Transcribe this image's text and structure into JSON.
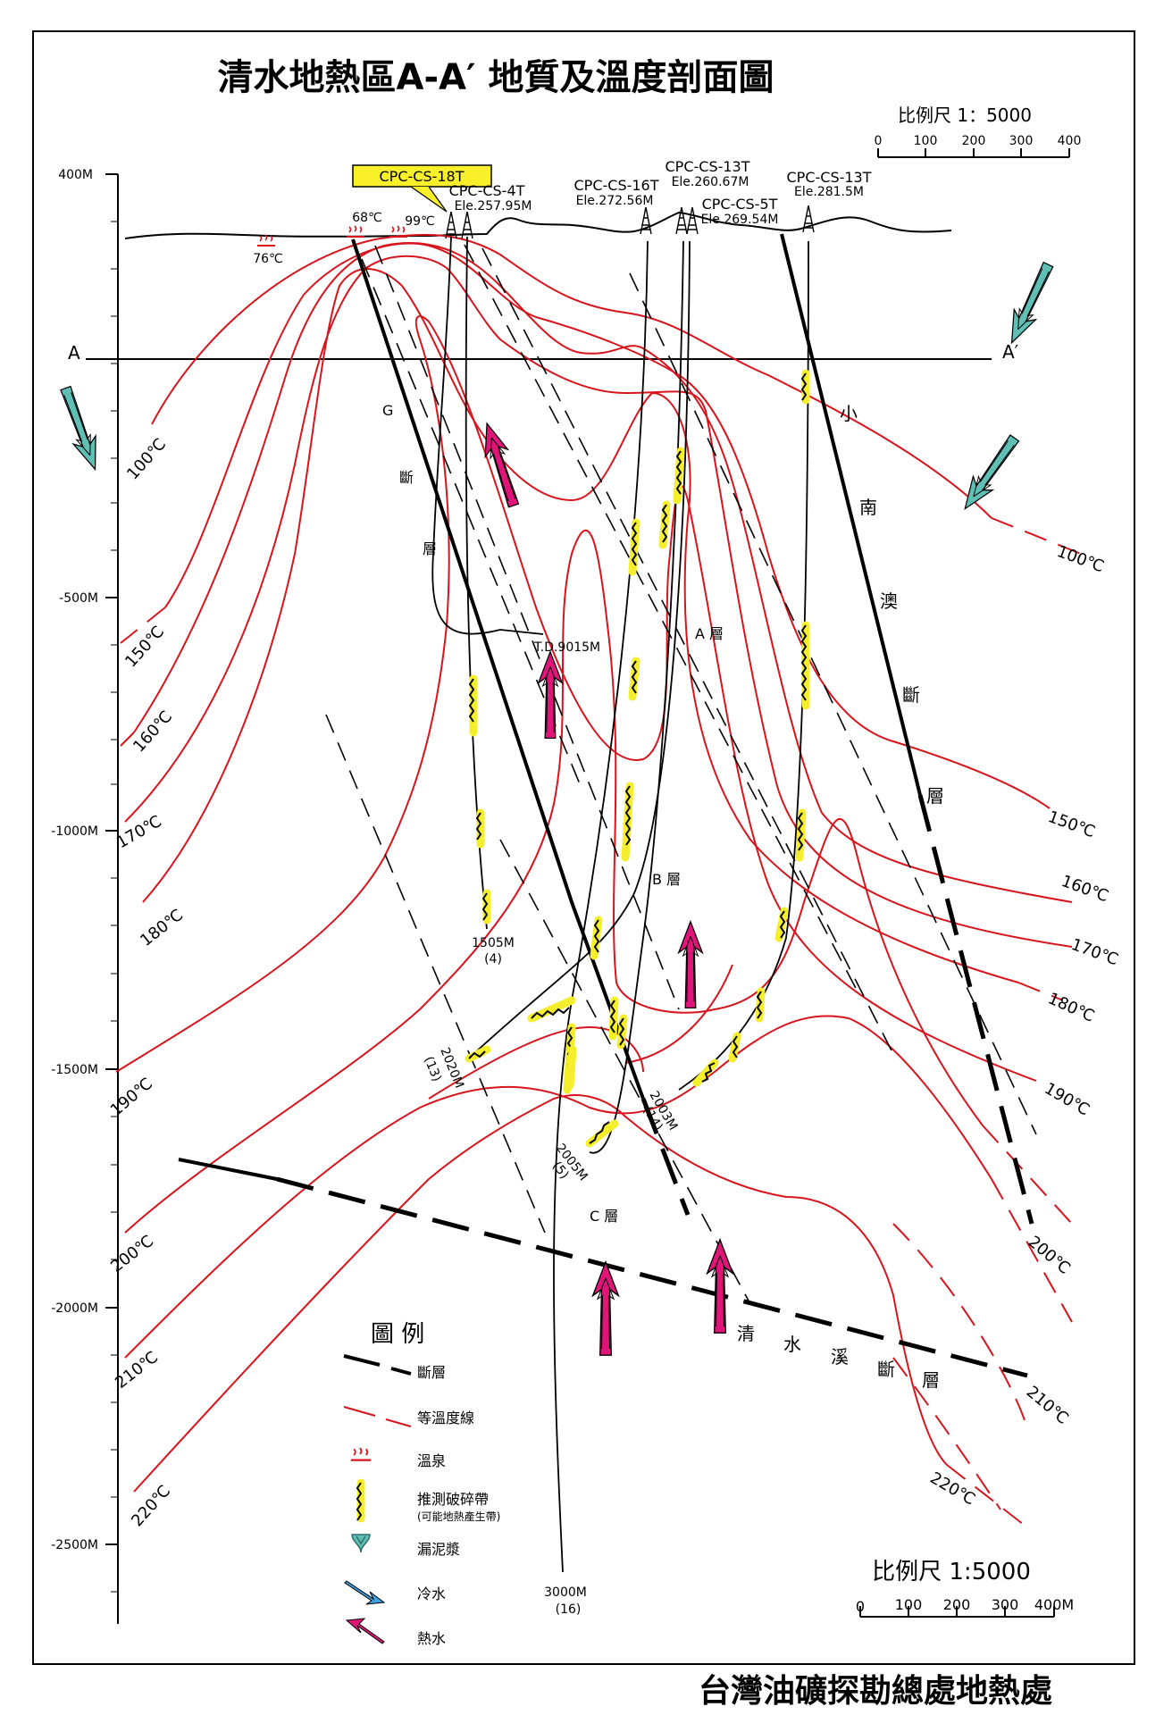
{
  "title": "清水地熱區A-A′ 地質及溫度剖面圖",
  "org_footer": "台灣油礦探勘總處地熱處",
  "scale_top": {
    "label": "比例尺 1：5000",
    "ticks": [
      "0",
      "100",
      "200",
      "300",
      "400"
    ]
  },
  "scale_bottom": {
    "label": "比例尺 1:5000",
    "ticks": [
      "0",
      "100",
      "200",
      "300",
      "400M"
    ]
  },
  "depth_axis": [
    "400M",
    "-500M",
    "-1000M",
    "-1500M",
    "-2000M",
    "-2500M"
  ],
  "section_ends": [
    "A",
    "A′"
  ],
  "wells": [
    {
      "name": "CPC-CS-18T",
      "elevation": ""
    },
    {
      "name": "CPC-CS-4T",
      "elevation": "Ele.257.95M"
    },
    {
      "name": "CPC-CS-16T",
      "elevation": "Ele.272.56M"
    },
    {
      "name": "CPC-CS-13T",
      "elevation": "Ele.260.67M"
    },
    {
      "name": "CPC-CS-5T",
      "elevation": "Ele.269.54M"
    },
    {
      "name": "CPC-CS-13T",
      "elevation": "Ele.281.5M"
    }
  ],
  "hot_springs": [
    "68℃",
    "99℃",
    "76℃"
  ],
  "well_depths": [
    {
      "depth": "T.D.9015M",
      "no": ""
    },
    {
      "depth": "1505M",
      "no": "(4)"
    },
    {
      "depth": "2020M",
      "no": "(13)"
    },
    {
      "depth": "2003M",
      "no": "(14)"
    },
    {
      "depth": "2005M",
      "no": "(5)"
    },
    {
      "depth": "3000M",
      "no": "(16)"
    }
  ],
  "isotherms_left": [
    "100℃",
    "150℃",
    "160℃",
    "170℃",
    "180℃",
    "190℃",
    "200℃",
    "210℃",
    "220℃"
  ],
  "isotherms_right": [
    "100℃",
    "150℃",
    "160℃",
    "170℃",
    "180℃",
    "190℃",
    "200℃",
    "210℃",
    "220℃"
  ],
  "layers": [
    "A 層",
    "B 層",
    "C 層"
  ],
  "faults": {
    "g": [
      "G",
      "斷",
      "層"
    ],
    "xiaonanao": [
      "小",
      "南",
      "澳",
      "斷",
      "層"
    ],
    "qingshuixi": [
      "清",
      "水",
      "溪",
      "斷",
      "層"
    ]
  },
  "legend": {
    "title": "圖 例",
    "items": [
      {
        "icon": "fault-line-icon",
        "label": "斷層",
        "sub": ""
      },
      {
        "icon": "isotherm-line-icon",
        "label": "等溫度線",
        "sub": ""
      },
      {
        "icon": "hot-spring-icon",
        "label": "溫泉",
        "sub": ""
      },
      {
        "icon": "fracture-zone-icon",
        "label": "推測破碎帶",
        "sub": "(可能地熱產生帶)"
      },
      {
        "icon": "mud-loss-icon",
        "label": "漏泥漿",
        "sub": ""
      },
      {
        "icon": "cold-water-arrow-icon",
        "label": "冷水",
        "sub": ""
      },
      {
        "icon": "hot-water-arrow-icon",
        "label": "熱水",
        "sub": ""
      }
    ]
  },
  "colors": {
    "isotherm": "#d8141c",
    "hot_water": "#e0157a",
    "cold_water": "#5fbfb5",
    "fracture": "#f4ee2c",
    "callout": "#f9f02a"
  }
}
